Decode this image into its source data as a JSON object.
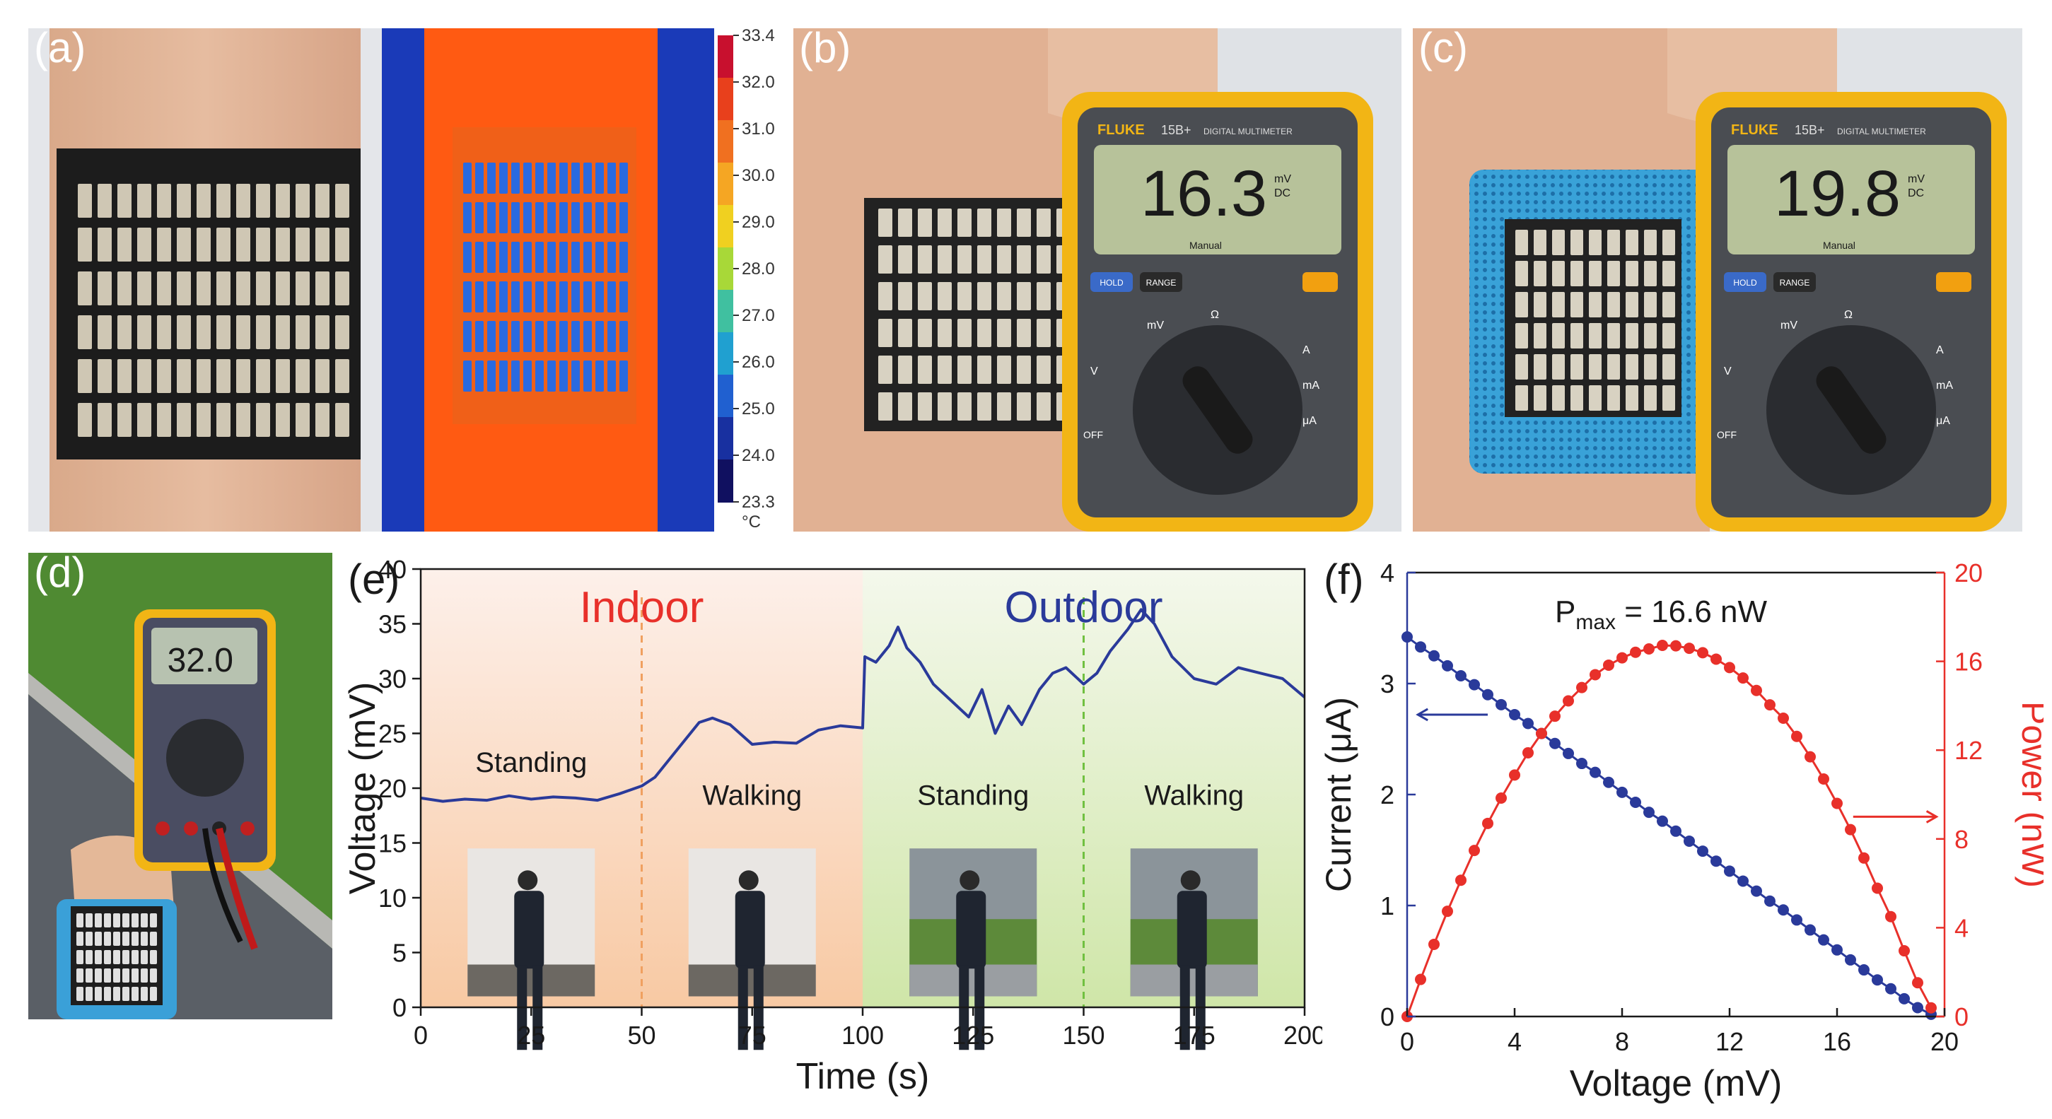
{
  "panels": {
    "a": {
      "label": "(a)"
    },
    "b": {
      "label": "(b)",
      "reading": "16.3",
      "unit_top": "mV",
      "unit_bottom": "DC"
    },
    "c": {
      "label": "(c)",
      "reading": "19.8",
      "unit_top": "mV",
      "unit_bottom": "DC"
    },
    "d": {
      "label": "(d)",
      "reading": "32.0"
    },
    "e": {
      "label": "(e)"
    },
    "f": {
      "label": "(f)"
    }
  },
  "multimeter": {
    "brand": "FLUKE",
    "model": "15B+",
    "model_sub": "DIGITAL MULTIMETER",
    "manual": "Manual",
    "hold": "HOLD",
    "range": "RANGE",
    "off": "OFF",
    "dial_labels": [
      "mV",
      "Ω",
      "V",
      "A",
      "mA",
      "μA"
    ]
  },
  "thermal_scale": {
    "ticks": [
      "33.4",
      "32.0",
      "31.0",
      "30.0",
      "29.0",
      "28.0",
      "27.0",
      "26.0",
      "25.0",
      "24.0",
      "23.3"
    ],
    "unit": "°C",
    "colors": [
      "#c8102e",
      "#e8401c",
      "#f07020",
      "#f5a623",
      "#f0d020",
      "#a8d838",
      "#40c0a0",
      "#20a0d0",
      "#2060d0",
      "#1830a0",
      "#101060"
    ]
  },
  "chart_data": [
    {
      "type": "line",
      "panel": "e",
      "xlabel": "Time (s)",
      "ylabel": "Voltage (mV)",
      "xlim": [
        0,
        200
      ],
      "ylim": [
        0,
        40
      ],
      "xticks": [
        "0",
        "25",
        "50",
        "75",
        "100",
        "125",
        "150",
        "175",
        "200"
      ],
      "yticks": [
        "0",
        "5",
        "10",
        "15",
        "20",
        "25",
        "30",
        "35",
        "40"
      ],
      "region_labels": [
        {
          "text": "Indoor",
          "color": "#e8302a"
        },
        {
          "text": "Outdoor",
          "color": "#2a3a9a"
        }
      ],
      "phase_labels": [
        "Standing",
        "Walking",
        "Standing",
        "Walking"
      ],
      "series": [
        {
          "color": "#2a3a9a",
          "x": [
            0,
            5,
            10,
            15,
            20,
            25,
            30,
            35,
            40,
            45,
            50,
            53,
            56,
            60,
            63,
            66,
            70,
            75,
            80,
            85,
            90,
            95,
            100,
            100.5,
            103,
            106,
            108,
            110,
            113,
            116,
            120,
            124,
            127,
            130,
            133,
            136,
            140,
            143,
            146,
            150,
            153,
            156,
            160,
            163,
            166,
            170,
            175,
            180,
            185,
            190,
            195,
            200
          ],
          "y": [
            19.1,
            18.8,
            19.0,
            18.9,
            19.3,
            19.0,
            19.2,
            19.1,
            18.9,
            19.5,
            20.2,
            21.0,
            22.5,
            24.5,
            26.0,
            26.4,
            25.8,
            24.0,
            24.2,
            24.1,
            25.3,
            25.7,
            25.5,
            32.0,
            31.5,
            33.0,
            34.7,
            32.8,
            31.5,
            29.5,
            28.0,
            26.5,
            29.0,
            25.0,
            27.5,
            25.8,
            29.0,
            30.5,
            31.0,
            29.5,
            30.5,
            32.5,
            34.5,
            36.3,
            35.0,
            32.0,
            30.0,
            29.5,
            31.0,
            30.5,
            30.0,
            28.3
          ]
        }
      ]
    },
    {
      "type": "scatter",
      "panel": "f",
      "xlabel": "Voltage (mV)",
      "ylabel": "Current (μA)",
      "y2label": "Power (nW)",
      "xlim": [
        0,
        20
      ],
      "ylim": [
        0,
        4
      ],
      "y2lim": [
        0,
        20
      ],
      "xticks": [
        "0",
        "4",
        "8",
        "12",
        "16",
        "20"
      ],
      "yticks": [
        "0",
        "1",
        "2",
        "3",
        "4"
      ],
      "y2ticks": [
        "0",
        "4",
        "8",
        "12",
        "16",
        "20"
      ],
      "annotation_main": "P",
      "annotation_sub": "max",
      "annotation_rest": " = 16.6 nW",
      "series": [
        {
          "axis": "left",
          "color": "#2a3a9a",
          "x": [
            0,
            0.5,
            1,
            1.5,
            2,
            2.5,
            3,
            3.5,
            4,
            4.5,
            5,
            5.5,
            6,
            6.5,
            7,
            7.5,
            8,
            8.5,
            9,
            9.5,
            10,
            10.5,
            11,
            11.5,
            12,
            12.5,
            13,
            13.5,
            14,
            14.5,
            15,
            15.5,
            16,
            16.5,
            17,
            17.5,
            18,
            18.5,
            19,
            19.5
          ],
          "y": [
            3.42,
            3.33,
            3.25,
            3.16,
            3.07,
            2.99,
            2.9,
            2.81,
            2.72,
            2.64,
            2.55,
            2.46,
            2.37,
            2.28,
            2.2,
            2.11,
            2.02,
            1.93,
            1.84,
            1.76,
            1.67,
            1.58,
            1.49,
            1.4,
            1.31,
            1.22,
            1.13,
            1.04,
            0.96,
            0.87,
            0.78,
            0.69,
            0.6,
            0.51,
            0.42,
            0.33,
            0.25,
            0.16,
            0.08,
            0.02
          ]
        },
        {
          "axis": "right",
          "color": "#e8302a",
          "x": [
            0,
            0.5,
            1,
            1.5,
            2,
            2.5,
            3,
            3.5,
            4,
            4.5,
            5,
            5.5,
            6,
            6.5,
            7,
            7.5,
            8,
            8.5,
            9,
            9.5,
            10,
            10.5,
            11,
            11.5,
            12,
            12.5,
            13,
            13.5,
            14,
            14.5,
            15,
            15.5,
            16,
            16.5,
            17,
            17.5,
            18,
            18.5,
            19,
            19.5
          ],
          "y": [
            0,
            1.67,
            3.25,
            4.74,
            6.14,
            7.48,
            8.7,
            9.84,
            10.88,
            11.88,
            12.75,
            13.53,
            14.22,
            14.82,
            15.4,
            15.83,
            16.16,
            16.41,
            16.56,
            16.72,
            16.7,
            16.59,
            16.39,
            16.1,
            15.72,
            15.25,
            14.69,
            14.04,
            13.44,
            12.62,
            11.7,
            10.7,
            9.6,
            8.42,
            7.14,
            5.78,
            4.5,
            2.96,
            1.52,
            0.39
          ]
        }
      ]
    }
  ]
}
